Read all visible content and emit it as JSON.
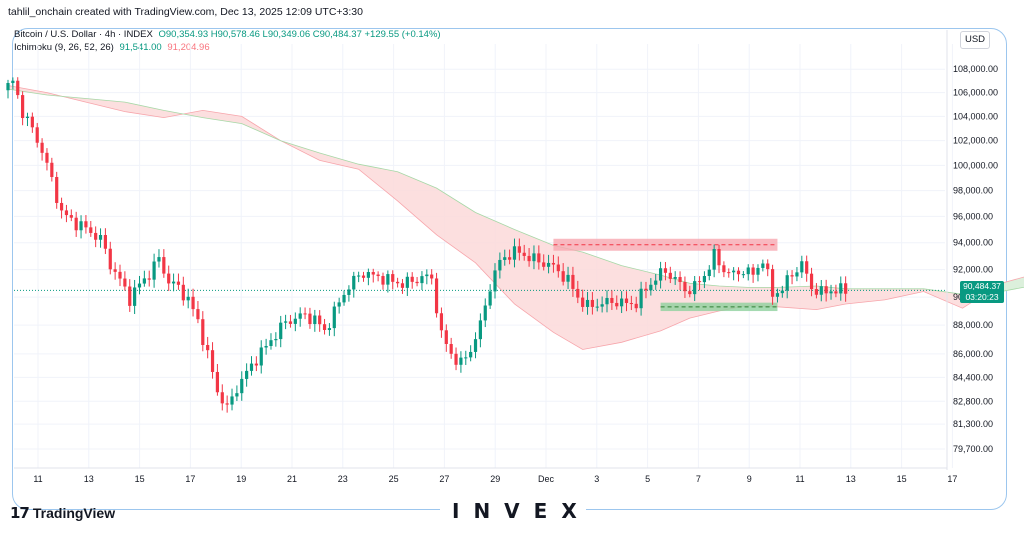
{
  "header": {
    "attribution": "tahlil_onchain created with TradingView.com, Dec 13, 2025 12:09 UTC+3:30"
  },
  "legend": {
    "symbol": "Bitcoin / U.S. Dollar · 4h · INDEX",
    "ohlc": "O90,354.93 H90,578.46 L90,349.06 C90,484.37 +129.55 (+0.14%)",
    "ichimoku_label": "Ichimoku (9, 26, 52, 26)",
    "ichimoku_a": "91,541.00",
    "ichimoku_b": "91,204.96"
  },
  "currency": "USD",
  "last_price": {
    "value": "90,484.37",
    "countdown": "03:20:23"
  },
  "branding": {
    "tradingview": "TradingView",
    "watermark": "INVEX"
  },
  "colors": {
    "up": "#089981",
    "down": "#f23645",
    "resistance": "#f7a8b0",
    "support": "#8fd19e",
    "cloud_bear": "#fbd9d9",
    "cloud_bull": "#dcf0dc"
  },
  "chart_data": {
    "type": "candlestick",
    "title": "Bitcoin / U.S. Dollar · 4h · INDEX",
    "x_tick_labels": [
      "11",
      "13",
      "15",
      "17",
      "19",
      "21",
      "23",
      "25",
      "27",
      "29",
      "Dec",
      "3",
      "5",
      "7",
      "9",
      "11",
      "13",
      "15",
      "17"
    ],
    "y_tick_labels": [
      "108,000.00",
      "106,000.00",
      "104,000.00",
      "102,000.00",
      "100,000.00",
      "98,000.00",
      "96,000.00",
      "94,000.00",
      "92,000.00",
      "90,000.00",
      "88,000.00",
      "86,000.00",
      "84,400.00",
      "82,800.00",
      "81,300.00",
      "79,700.00"
    ],
    "y_tick_values": [
      108000,
      106000,
      104000,
      102000,
      100000,
      98000,
      96000,
      94000,
      92000,
      90000,
      88000,
      86000,
      84400,
      82800,
      81300,
      79700
    ],
    "y_scale": "log",
    "ylim": [
      79000,
      109500
    ],
    "path": [
      [
        0,
        106200
      ],
      [
        2,
        106900
      ],
      [
        4,
        104400
      ],
      [
        6,
        102900
      ],
      [
        8,
        101200
      ],
      [
        10,
        98800
      ],
      [
        12,
        96300
      ],
      [
        14,
        95700
      ],
      [
        16,
        95300
      ],
      [
        18,
        94800
      ],
      [
        20,
        94300
      ],
      [
        22,
        92400
      ],
      [
        24,
        91200
      ],
      [
        26,
        89900
      ],
      [
        28,
        90900
      ],
      [
        30,
        91700
      ],
      [
        32,
        92800
      ],
      [
        34,
        91100
      ],
      [
        36,
        90700
      ],
      [
        38,
        89800
      ],
      [
        40,
        88300
      ],
      [
        42,
        85900
      ],
      [
        44,
        83500
      ],
      [
        46,
        82300
      ],
      [
        48,
        83700
      ],
      [
        50,
        84700
      ],
      [
        52,
        85700
      ],
      [
        54,
        86500
      ],
      [
        56,
        87400
      ],
      [
        58,
        88200
      ],
      [
        60,
        88500
      ],
      [
        62,
        88700
      ],
      [
        64,
        88400
      ],
      [
        66,
        87600
      ],
      [
        68,
        88900
      ],
      [
        70,
        90300
      ],
      [
        72,
        91200
      ],
      [
        74,
        91800
      ],
      [
        76,
        91500
      ],
      [
        78,
        91400
      ],
      [
        80,
        91100
      ],
      [
        82,
        91000
      ],
      [
        84,
        91100
      ],
      [
        86,
        91500
      ],
      [
        88,
        91300
      ],
      [
        90,
        87300
      ],
      [
        92,
        86000
      ],
      [
        94,
        85300
      ],
      [
        96,
        86300
      ],
      [
        98,
        88000
      ],
      [
        100,
        90800
      ],
      [
        102,
        92600
      ],
      [
        104,
        93200
      ],
      [
        106,
        93300
      ],
      [
        108,
        92900
      ],
      [
        110,
        92600
      ],
      [
        112,
        92400
      ],
      [
        114,
        91900
      ],
      [
        116,
        91200
      ],
      [
        118,
        90000
      ],
      [
        120,
        89300
      ],
      [
        122,
        89500
      ],
      [
        124,
        89600
      ],
      [
        126,
        89700
      ],
      [
        128,
        89500
      ],
      [
        130,
        89600
      ],
      [
        132,
        90600
      ],
      [
        134,
        91400
      ],
      [
        136,
        91900
      ],
      [
        138,
        91300
      ],
      [
        140,
        90500
      ],
      [
        142,
        90700
      ],
      [
        144,
        91600
      ],
      [
        146,
        93000
      ],
      [
        148,
        92000
      ],
      [
        150,
        91600
      ],
      [
        152,
        92000
      ],
      [
        154,
        91600
      ],
      [
        156,
        92800
      ],
      [
        158,
        90200
      ],
      [
        160,
        90600
      ],
      [
        162,
        91700
      ],
      [
        164,
        92400
      ],
      [
        166,
        90700
      ],
      [
        168,
        90300
      ],
      [
        170,
        90500
      ],
      [
        172,
        90484
      ]
    ],
    "ichimoku_cloud": {
      "span_a": [
        [
          0,
          106600
        ],
        [
          8,
          106000
        ],
        [
          16,
          105200
        ],
        [
          24,
          104400
        ],
        [
          32,
          103900
        ],
        [
          40,
          104500
        ],
        [
          48,
          104000
        ],
        [
          56,
          102000
        ],
        [
          64,
          100400
        ],
        [
          72,
          99700
        ],
        [
          80,
          97200
        ],
        [
          88,
          94600
        ],
        [
          96,
          92500
        ],
        [
          104,
          89500
        ],
        [
          112,
          87500
        ],
        [
          118,
          86300
        ],
        [
          126,
          86800
        ],
        [
          134,
          87600
        ],
        [
          140,
          88500
        ],
        [
          146,
          89000
        ],
        [
          152,
          89400
        ],
        [
          158,
          89300
        ],
        [
          166,
          89100
        ],
        [
          172,
          89500
        ],
        [
          180,
          89800
        ],
        [
          188,
          90400
        ],
        [
          196,
          89200
        ],
        [
          204,
          91000
        ],
        [
          210,
          91600
        ],
        [
          216,
          91500
        ],
        [
          222,
          91300
        ]
      ],
      "span_b": [
        [
          0,
          106300
        ],
        [
          8,
          105800
        ],
        [
          16,
          105500
        ],
        [
          24,
          105200
        ],
        [
          32,
          104500
        ],
        [
          40,
          103900
        ],
        [
          48,
          103400
        ],
        [
          56,
          102000
        ],
        [
          64,
          101000
        ],
        [
          72,
          100100
        ],
        [
          80,
          99500
        ],
        [
          88,
          98200
        ],
        [
          96,
          96300
        ],
        [
          104,
          95000
        ],
        [
          112,
          93800
        ],
        [
          118,
          93300
        ],
        [
          126,
          92300
        ],
        [
          134,
          91600
        ],
        [
          140,
          91000
        ],
        [
          146,
          90800
        ],
        [
          152,
          90700
        ],
        [
          158,
          90700
        ],
        [
          166,
          90800
        ],
        [
          172,
          90600
        ],
        [
          180,
          90600
        ],
        [
          188,
          90600
        ],
        [
          196,
          90200
        ],
        [
          204,
          90400
        ],
        [
          210,
          90800
        ],
        [
          216,
          91000
        ],
        [
          222,
          91100
        ]
      ]
    },
    "zones": [
      {
        "name": "resistance",
        "x": [
          112,
          158
        ],
        "y": [
          93400,
          94300
        ]
      },
      {
        "name": "support",
        "x": [
          134,
          158
        ],
        "y": [
          89000,
          89600
        ]
      }
    ],
    "grid": true,
    "legend_position": "top-left"
  }
}
